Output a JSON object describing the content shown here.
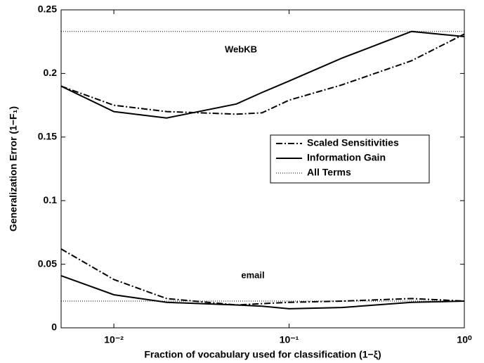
{
  "chart_data": {
    "type": "line",
    "x_label": "Fraction of vocabulary used for classification (1−ξ)",
    "y_label": "Generalization Error (1−F₁)",
    "x_scale": "log",
    "x": [
      0.005,
      0.01,
      0.02,
      0.05,
      0.07,
      0.1,
      0.2,
      0.5,
      1
    ],
    "xlim": [
      0.005,
      1
    ],
    "xticks": [
      {
        "value": 0.01,
        "label": "10⁻²"
      },
      {
        "value": 0.1,
        "label": "10⁻¹"
      },
      {
        "value": 1,
        "label": "10⁰"
      }
    ],
    "ylim": [
      0,
      0.25
    ],
    "yticks": [
      0,
      0.05,
      0.1,
      0.15,
      0.2,
      0.25
    ],
    "legend": "right",
    "annotations": [
      "WebKB",
      "email"
    ],
    "series": [
      {
        "name": "Scaled Sensitivities",
        "color": "#000000",
        "dash": "dashdot",
        "values": [
          0.19,
          0.175,
          0.17,
          0.168,
          0.169,
          0.179,
          0.191,
          0.21,
          0.231
        ]
      },
      {
        "name": "Information Gain",
        "color": "#000000",
        "dash": "solid",
        "values": [
          0.19,
          0.17,
          0.165,
          0.176,
          0.185,
          0.194,
          0.212,
          0.233,
          0.229
        ]
      },
      {
        "name": "All Terms",
        "color": "#000000",
        "dash": "dotted",
        "values": [
          0.233,
          0.233,
          0.233,
          0.233,
          0.233,
          0.233,
          0.233,
          0.233,
          0.233
        ]
      },
      {
        "color": "#000000",
        "dash": "dashdot",
        "values": [
          0.062,
          0.038,
          0.023,
          0.018,
          0.019,
          0.02,
          0.021,
          0.023,
          0.021
        ]
      },
      {
        "color": "#000000",
        "dash": "solid",
        "values": [
          0.041,
          0.026,
          0.02,
          0.018,
          0.017,
          0.015,
          0.016,
          0.02,
          0.021
        ]
      },
      {
        "color": "#000000",
        "dash": "dotted",
        "values": [
          0.021,
          0.021,
          0.021,
          0.021,
          0.021,
          0.021,
          0.021,
          0.021,
          0.021
        ]
      }
    ]
  }
}
